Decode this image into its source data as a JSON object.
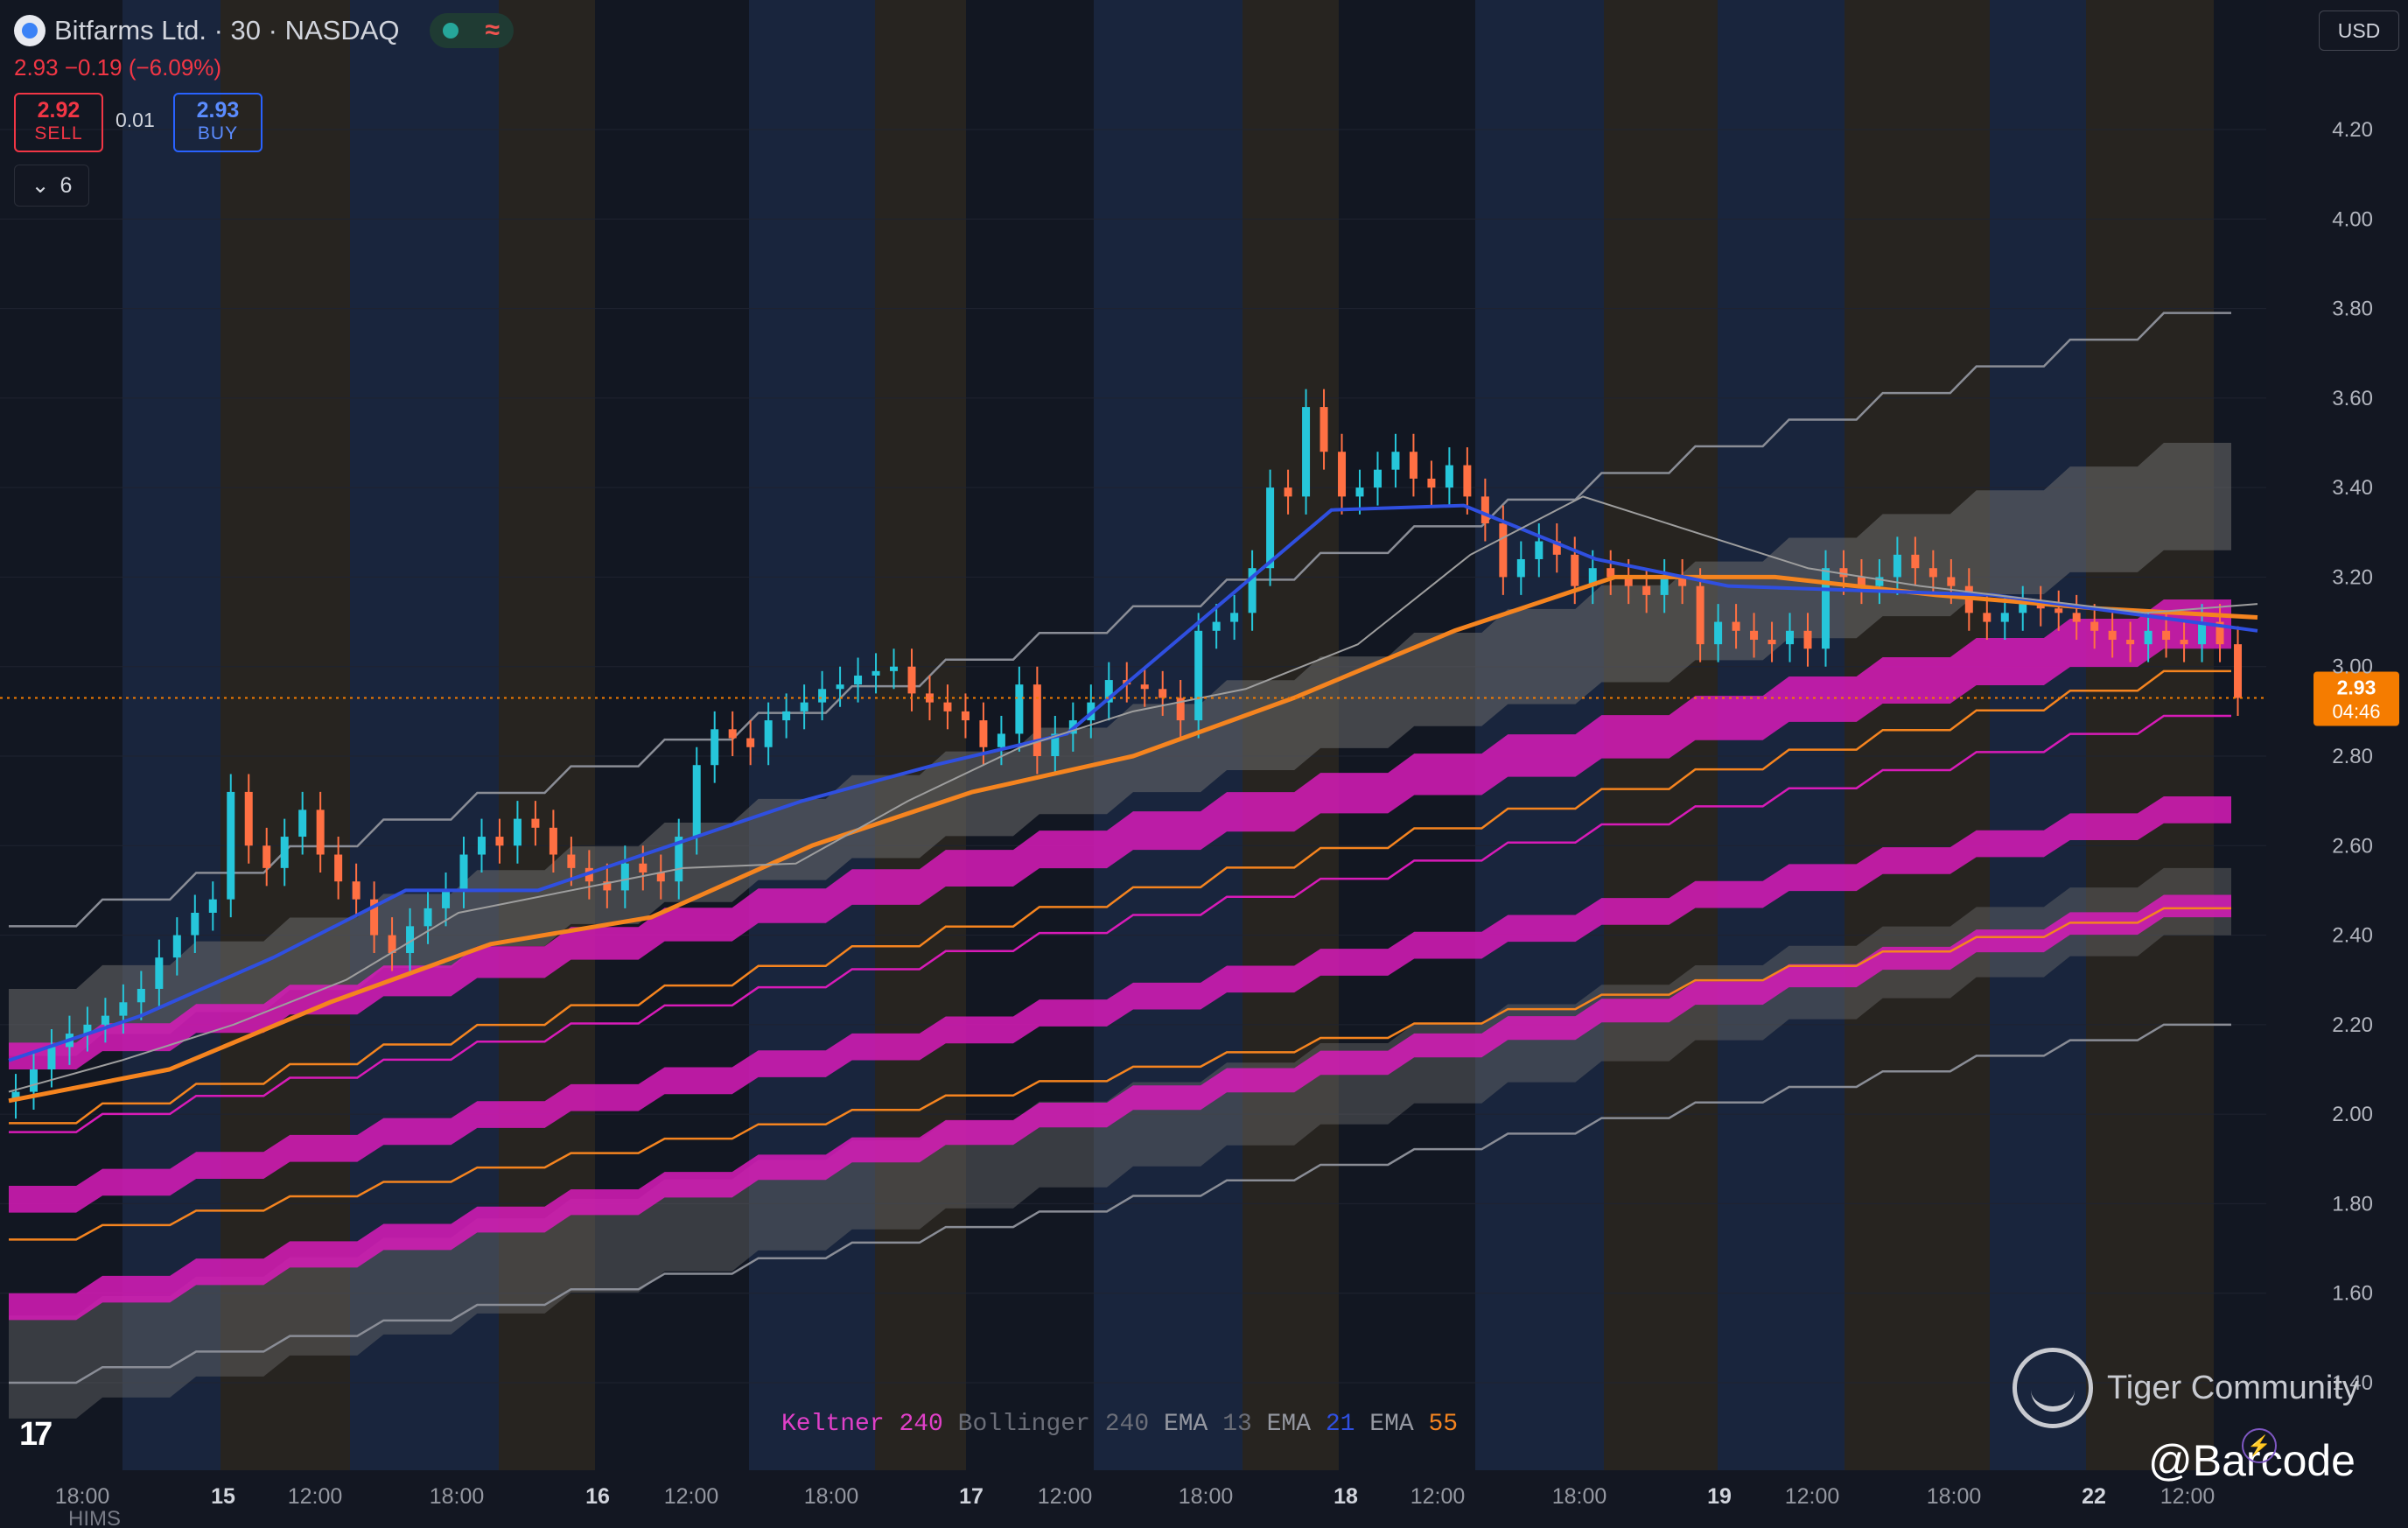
{
  "header": {
    "title": "Bitfarms Ltd. · 30 · NASDAQ",
    "change": "2.93 −0.19 (−6.09%)",
    "sell_price": "2.92",
    "sell_label": "SELL",
    "spread": "0.01",
    "buy_price": "2.93",
    "buy_label": "BUY",
    "collapse_count": "6",
    "currency": "USD"
  },
  "price_label": {
    "price": "2.93",
    "countdown": "04:46"
  },
  "legend": {
    "keltner": "Keltner",
    "keltner_len": "240",
    "bollinger": "Bollinger",
    "bollinger_len": "240",
    "ema1": "EMA",
    "ema1_len": "13",
    "ema2": "EMA",
    "ema2_len": "21",
    "ema3": "EMA",
    "ema3_len": "55"
  },
  "watermark": {
    "community": "Tiger Community",
    "handle": "@Barcode"
  },
  "bottom_symbol": "HIMS",
  "colors": {
    "background": "#131722",
    "up": "#26c6da",
    "down": "#ff7043",
    "ema13": "#9e9e9e",
    "ema21": "#2f4fe0",
    "ema55": "#f5841f",
    "keltner": "#d81bb8",
    "bollinger_fill": "#6b6b6b",
    "price_tag": "#f57c00"
  },
  "chart_data": {
    "type": "candlestick",
    "symbol": "Bitfarms Ltd.",
    "interval": "30",
    "exchange": "NASDAQ",
    "y_ticks": [
      1.4,
      1.6,
      1.8,
      2.0,
      2.2,
      2.4,
      2.6,
      2.8,
      3.0,
      3.2,
      3.4,
      3.6,
      3.8,
      4.0,
      4.2
    ],
    "y_tick_labels": [
      "1.40",
      "1.60",
      "1.80",
      "2.00",
      "2.20",
      "2.40",
      "2.60",
      "2.80",
      "3.00",
      "3.20",
      "3.40",
      "3.60",
      "3.80",
      "4.00",
      "4.20"
    ],
    "ylim": [
      1.32,
      4.35
    ],
    "x_labels": [
      "18:00",
      "15",
      "12:00",
      "18:00",
      "16",
      "12:00",
      "18:00",
      "17",
      "12:00",
      "18:00",
      "18",
      "12:00",
      "18:00",
      "19",
      "12:00",
      "18:00",
      "22",
      "12:00"
    ],
    "last_price": 2.93,
    "closes": [
      2.05,
      2.1,
      2.15,
      2.18,
      2.2,
      2.22,
      2.25,
      2.28,
      2.35,
      2.4,
      2.45,
      2.48,
      2.72,
      2.6,
      2.55,
      2.62,
      2.68,
      2.58,
      2.52,
      2.48,
      2.4,
      2.36,
      2.42,
      2.46,
      2.5,
      2.58,
      2.62,
      2.6,
      2.66,
      2.64,
      2.58,
      2.55,
      2.52,
      2.5,
      2.56,
      2.54,
      2.52,
      2.62,
      2.78,
      2.86,
      2.84,
      2.82,
      2.88,
      2.9,
      2.92,
      2.95,
      2.96,
      2.98,
      2.99,
      3.0,
      2.94,
      2.92,
      2.9,
      2.88,
      2.82,
      2.85,
      2.96,
      2.8,
      2.85,
      2.88,
      2.92,
      2.97,
      2.96,
      2.95,
      2.93,
      2.88,
      3.08,
      3.1,
      3.12,
      3.22,
      3.4,
      3.38,
      3.58,
      3.48,
      3.38,
      3.4,
      3.44,
      3.48,
      3.42,
      3.4,
      3.45,
      3.38,
      3.32,
      3.2,
      3.24,
      3.28,
      3.25,
      3.18,
      3.22,
      3.2,
      3.18,
      3.16,
      3.2,
      3.18,
      3.05,
      3.1,
      3.08,
      3.06,
      3.05,
      3.08,
      3.04,
      3.22,
      3.2,
      3.18,
      3.2,
      3.25,
      3.22,
      3.2,
      3.18,
      3.12,
      3.1,
      3.12,
      3.14,
      3.13,
      3.12,
      3.1,
      3.08,
      3.06,
      3.05,
      3.08,
      3.06,
      3.05,
      3.1,
      3.05,
      2.93
    ],
    "ema13_series": [
      2.05,
      2.12,
      2.2,
      2.3,
      2.45,
      2.5,
      2.55,
      2.56,
      2.7,
      2.82,
      2.9,
      2.95,
      3.05,
      3.25,
      3.38,
      3.3,
      3.22,
      3.18,
      3.15,
      3.12,
      3.14
    ],
    "ema21_series": [
      2.12,
      2.22,
      2.35,
      2.5,
      2.5,
      2.6,
      2.7,
      2.78,
      2.85,
      3.1,
      3.35,
      3.36,
      3.24,
      3.18,
      3.17,
      3.16,
      3.12,
      3.08
    ],
    "ema55_series": [
      2.03,
      2.1,
      2.25,
      2.38,
      2.44,
      2.6,
      2.72,
      2.8,
      2.93,
      3.08,
      3.2,
      3.2,
      3.16,
      3.13,
      3.11
    ]
  }
}
